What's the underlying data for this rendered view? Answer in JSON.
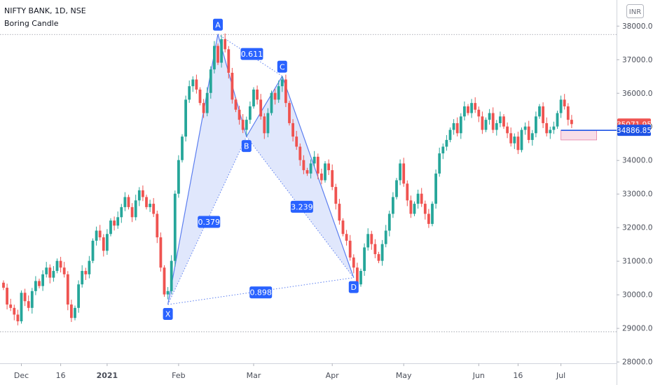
{
  "header": {
    "symbol": "NIFTY BANK, 1D, NSE",
    "indicator": "Boring Candle"
  },
  "currency_badge": "INR",
  "chart_data": {
    "type": "candlestick",
    "y_ticks": [
      28000,
      29000,
      30000,
      31000,
      32000,
      33000,
      34000,
      35000,
      36000,
      37000,
      38000
    ],
    "y_tick_labels": [
      "28000.00",
      "29000.00",
      "30000.00",
      "31000.00",
      "32000.00",
      "33000.00",
      "34000.00",
      "35000.00",
      "36000.00",
      "37000.00",
      "38000.00"
    ],
    "ylim": [
      27950,
      38600
    ],
    "x_labels": [
      {
        "text": "Dec",
        "bar": 5
      },
      {
        "text": "16",
        "bar": 16
      },
      {
        "text": "2021",
        "bar": 29
      },
      {
        "text": "Feb",
        "bar": 49
      },
      {
        "text": "Mar",
        "bar": 70
      },
      {
        "text": "Apr",
        "bar": 92
      },
      {
        "text": "May",
        "bar": 112
      },
      {
        "text": "Jun",
        "bar": 133
      },
      {
        "text": "16",
        "bar": 144
      },
      {
        "text": "Jul",
        "bar": 156
      }
    ],
    "reference_lines": [
      37750,
      28900
    ],
    "last_price": {
      "value": 35071.95,
      "label": "35071.95",
      "color": "#ef5350"
    },
    "zone_price": {
      "value": 34886.85,
      "label": "34886.85",
      "color": "#1e53e5"
    },
    "boring_zone": {
      "start_bar": 156,
      "end_bar": 166,
      "top": 34886.85,
      "bottom": 34600
    },
    "harmonic": {
      "points": [
        {
          "name": "X",
          "bar": 46,
          "price": 29700
        },
        {
          "name": "A",
          "bar": 60,
          "price": 37750
        },
        {
          "name": "B",
          "bar": 68,
          "price": 34700
        },
        {
          "name": "C",
          "bar": 78,
          "price": 36500
        },
        {
          "name": "D",
          "bar": 98,
          "price": 30500
        }
      ],
      "ratios": [
        {
          "text": "0.611",
          "bar": 69.5,
          "price": 37150
        },
        {
          "text": "0.379",
          "bar": 57.5,
          "price": 32150
        },
        {
          "text": "3.239",
          "bar": 83.5,
          "price": 32600
        },
        {
          "text": "0.898",
          "bar": 72,
          "price": 30050
        }
      ]
    },
    "colors": {
      "up": "#26a69a",
      "down": "#ef5350",
      "pattern": "#5b7ef0",
      "fill": "#dbe3fb",
      "label_bg": "#2962ff"
    },
    "closes": [
      30200,
      29700,
      29600,
      29400,
      29200,
      30050,
      29800,
      29600,
      30100,
      30400,
      30250,
      30600,
      30800,
      30500,
      30700,
      31000,
      30800,
      30600,
      29700,
      29300,
      29600,
      30300,
      30700,
      30600,
      31000,
      31600,
      31900,
      31700,
      31300,
      31800,
      32200,
      32050,
      32300,
      32600,
      32900,
      32600,
      32300,
      32800,
      33100,
      32900,
      32600,
      32700,
      32400,
      31700,
      30800,
      30000,
      30100,
      31000,
      33000,
      34000,
      34700,
      35800,
      36200,
      36400,
      36100,
      35700,
      35400,
      36000,
      36700,
      37400,
      36900,
      37600,
      37300,
      36600,
      35800,
      35500,
      35200,
      34900,
      35200,
      35600,
      36100,
      35800,
      35300,
      34800,
      35400,
      36000,
      35800,
      36200,
      36400,
      35700,
      35100,
      34700,
      34400,
      34000,
      33700,
      33600,
      33900,
      34100,
      33600,
      33400,
      33900,
      33700,
      33200,
      32700,
      32200,
      31800,
      31600,
      31100,
      30800,
      30300,
      30700,
      31400,
      31800,
      31500,
      31200,
      31000,
      31500,
      31900,
      32400,
      32900,
      33400,
      33900,
      33300,
      32800,
      32400,
      32700,
      33000,
      32700,
      32400,
      32100,
      32700,
      33600,
      34200,
      34400,
      34600,
      34900,
      35100,
      34800,
      35300,
      35600,
      35400,
      35700,
      35500,
      35300,
      34900,
      35200,
      35400,
      34900,
      35100,
      35300,
      35000,
      34800,
      34500,
      34700,
      34300,
      34900,
      35000,
      34600,
      34800,
      35300,
      35600,
      35100,
      34800,
      34900,
      35000,
      35400,
      35800,
      35600,
      35200,
      35071.95
    ]
  }
}
